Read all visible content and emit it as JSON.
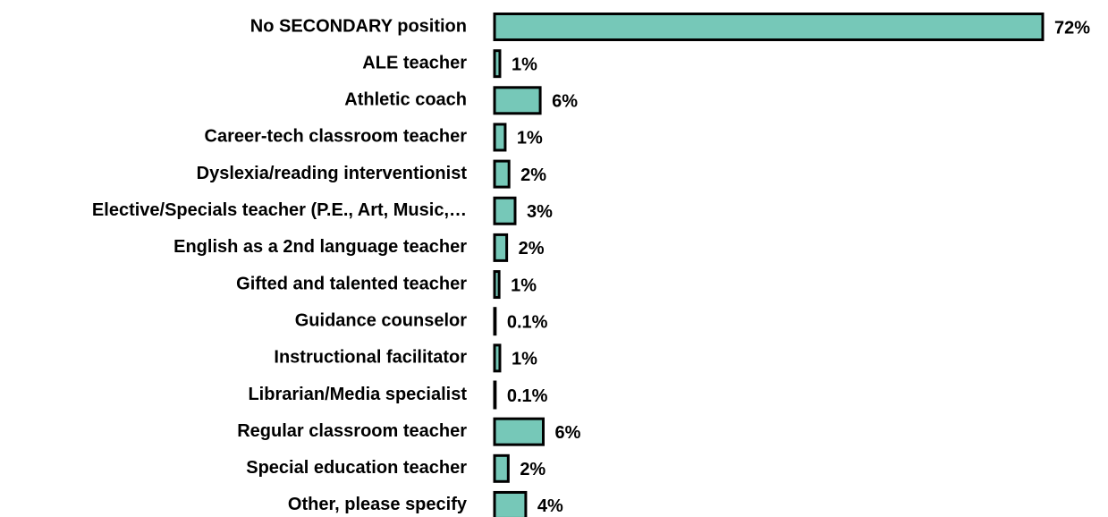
{
  "chart_data": {
    "type": "bar",
    "orientation": "horizontal",
    "categories": [
      "No SECONDARY position",
      "ALE teacher",
      "Athletic coach",
      "Career-tech classroom teacher",
      "Dyslexia/reading interventionist",
      "Elective/Specials teacher (P.E., Art, Music,…",
      "English as a 2nd language teacher",
      "Gifted and talented teacher",
      "Guidance counselor",
      "Instructional facilitator",
      "Librarian/Media specialist",
      "Regular classroom teacher",
      "Special education teacher",
      "Other, please specify"
    ],
    "values": [
      72,
      0.7,
      6,
      1.4,
      1.9,
      2.7,
      1.6,
      0.6,
      0.1,
      0.7,
      0.1,
      6.4,
      1.8,
      4.1
    ],
    "value_labels": [
      "72%",
      "1%",
      "6%",
      "1%",
      "2%",
      "3%",
      "2%",
      "1%",
      "0.1%",
      "1%",
      "0.1%",
      "6%",
      "2%",
      "4%"
    ],
    "color": "#76c8b8"
  }
}
